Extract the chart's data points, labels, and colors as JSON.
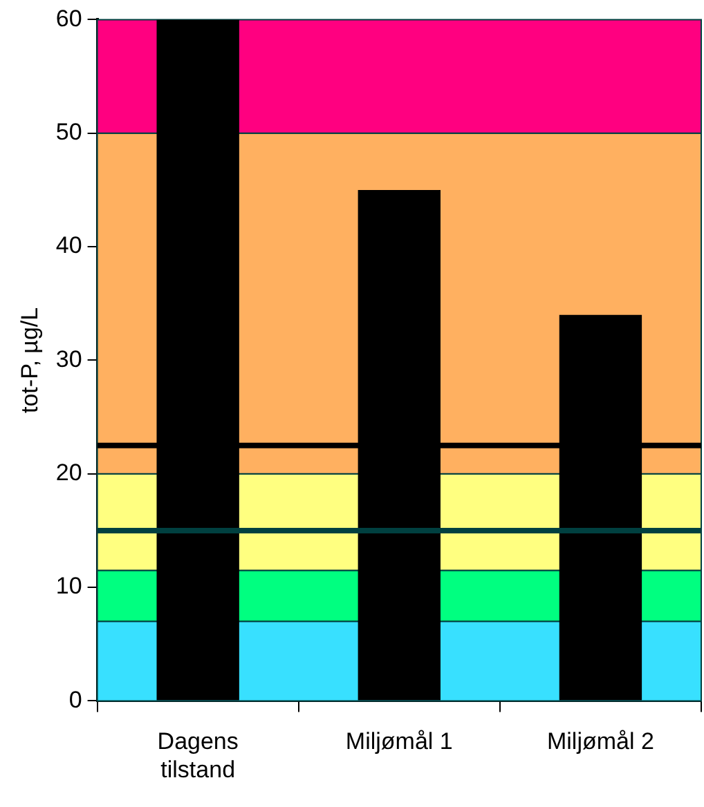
{
  "chart_data": {
    "type": "bar",
    "ylabel": "tot-P, µg/L",
    "categories": [
      "Dagens tilstand",
      "Miljømål 1",
      "Miljømål 2"
    ],
    "values": [
      60,
      45,
      34
    ],
    "color": "#000000",
    "ylim": [
      0,
      60
    ],
    "yticks": [
      0,
      10,
      20,
      30,
      40,
      50,
      60
    ],
    "grid": false,
    "legend": false,
    "bands": [
      {
        "axis": "y",
        "from": 0,
        "to": 7,
        "color": "#38e0ff"
      },
      {
        "axis": "y",
        "from": 7,
        "to": 11.5,
        "color": "#00ff80"
      },
      {
        "axis": "y",
        "from": 11.5,
        "to": 20,
        "color": "#ffff80"
      },
      {
        "axis": "y",
        "from": 20,
        "to": 50,
        "color": "#ffb060"
      },
      {
        "axis": "y",
        "from": 50,
        "to": 60,
        "color": "#ff0080"
      }
    ],
    "ref_lines": [
      {
        "axis": "y",
        "value": 15,
        "color": "#004040"
      },
      {
        "axis": "y",
        "value": 22.5,
        "color": "#000000"
      }
    ]
  }
}
